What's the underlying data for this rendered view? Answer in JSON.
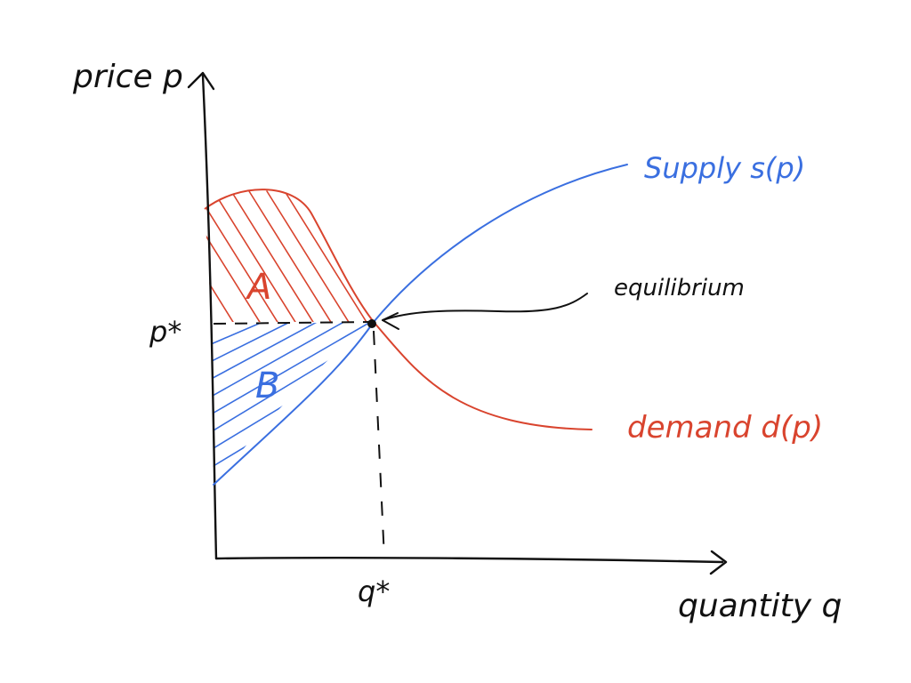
{
  "axes": {
    "y_label": "price p",
    "x_label": "quantity q",
    "p_star": "p*",
    "q_star": "q*"
  },
  "curves": {
    "supply_label": "Supply s(p)",
    "demand_label": "demand d(p)"
  },
  "annotations": {
    "equilibrium": "equilibrium",
    "region_a": "A",
    "region_b": "B"
  },
  "colors": {
    "ink": "#111111",
    "supply": "#3a6fe0",
    "demand": "#d9442e"
  }
}
